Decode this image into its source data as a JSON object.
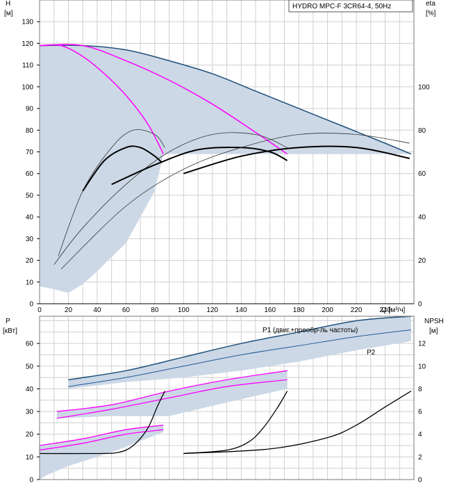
{
  "chart_data": [
    {
      "type": "line",
      "panel": "top",
      "legend_label": "HYDRO MPC-F 3CR64-4, 50Hz",
      "y_title": "H",
      "y_unit": "[м]",
      "y2_title": "eta",
      "y2_unit": "[%]",
      "x_unit_label": "Q [м³/ч]",
      "xlim": [
        0,
        260
      ],
      "ylim": [
        0,
        140
      ],
      "y2lim": [
        0,
        140
      ],
      "x_ticks": [
        "0",
        "20",
        "40",
        "60",
        "80",
        "100",
        "120",
        "140",
        "160",
        "180",
        "200",
        "220",
        "240"
      ],
      "y_ticks": [
        "0",
        "10",
        "20",
        "30",
        "40",
        "50",
        "60",
        "70",
        "80",
        "90",
        "100",
        "110",
        "120",
        "130"
      ],
      "y2_ticks": [
        "0",
        "20",
        "40",
        "60",
        "80",
        "100"
      ],
      "grid": true,
      "colors": {
        "envelope": "#ccd8e6",
        "max_curve": "#1f4e79",
        "setpoint": "#ff00ff",
        "eta": "#000000"
      },
      "envelope_upper": {
        "x": [
          0,
          30,
          60,
          90,
          120,
          150,
          180,
          210,
          240,
          258
        ],
        "y": [
          119,
          119,
          117,
          112,
          106,
          98,
          90,
          82,
          74,
          69
        ]
      },
      "envelope_lower": {
        "x": [
          0,
          8,
          20,
          30,
          40,
          60,
          80,
          86,
          258
        ],
        "y": [
          8,
          7,
          5,
          9,
          15,
          28,
          52,
          69,
          69
        ]
      },
      "series": [
        {
          "group": "max",
          "x": [
            0,
            30,
            60,
            90,
            120,
            150,
            180,
            210,
            240,
            258
          ],
          "y": [
            119,
            119,
            117,
            112,
            106,
            98,
            90,
            82,
            74,
            69
          ]
        },
        {
          "group": "setpoint",
          "x": [
            0,
            15,
            30,
            45,
            60,
            75,
            86
          ],
          "y": [
            119,
            119,
            114,
            106,
            96,
            83,
            69
          ]
        },
        {
          "group": "setpoint",
          "x": [
            0,
            30,
            60,
            90,
            120,
            150,
            172
          ],
          "y": [
            119,
            119,
            112,
            103,
            92,
            79,
            69
          ]
        },
        {
          "group": "eta_thin",
          "x": [
            13,
            30,
            50,
            65,
            80,
            87
          ],
          "y": [
            22,
            52,
            72,
            80,
            78,
            72
          ]
        },
        {
          "group": "eta_thick",
          "x": [
            30,
            45,
            60,
            70,
            80,
            85
          ],
          "y": [
            52,
            66,
            72,
            72,
            68,
            65
          ]
        },
        {
          "group": "eta_thin",
          "x": [
            10,
            30,
            60,
            90,
            120,
            150,
            172
          ],
          "y": [
            18,
            35,
            55,
            70,
            78,
            78,
            72
          ]
        },
        {
          "group": "eta_thick",
          "x": [
            50,
            80,
            110,
            140,
            160,
            172
          ],
          "y": [
            55,
            64,
            71,
            72,
            70,
            66
          ]
        },
        {
          "group": "eta_thin",
          "x": [
            15,
            60,
            100,
            140,
            180,
            220,
            257
          ],
          "y": [
            16,
            45,
            62,
            72,
            78,
            78,
            74
          ]
        },
        {
          "group": "eta_thick",
          "x": [
            100,
            140,
            180,
            220,
            257
          ],
          "y": [
            60,
            68,
            72,
            72,
            67
          ]
        }
      ]
    },
    {
      "type": "line",
      "panel": "bottom",
      "y_title": "P",
      "y_unit": "[кВт]",
      "y2_title": "NPSH",
      "y2_unit": "[м]",
      "xlim": [
        0,
        260
      ],
      "ylim": [
        0,
        72
      ],
      "y2lim": [
        0,
        14.4
      ],
      "y_ticks": [
        "0",
        "10",
        "20",
        "30",
        "40",
        "50",
        "60"
      ],
      "y2_ticks": [
        "0",
        "2",
        "4",
        "6",
        "8",
        "10",
        "12"
      ],
      "grid": true,
      "colors": {
        "envelope": "#ccd8e6",
        "p1_max": "#1f4e79",
        "p2_max": "#1f5a96",
        "setpoint": "#ff00ff",
        "npsh": "#000000"
      },
      "annotations": [
        {
          "text": "P1 (двиг.+преобр-ль частоты)",
          "x": 125,
          "y": 74
        },
        {
          "text": "P2",
          "x": 240,
          "y": 62
        }
      ],
      "envelopes": [
        {
          "upper": {
            "x": [
              20,
              60,
              100,
              140,
              180,
              220,
              258
            ],
            "y": [
              44,
              48,
              54,
              60,
              65,
              70,
              72
            ]
          },
          "lower": {
            "x": [
              20,
              60,
              100,
              140,
              180,
              220,
              258
            ],
            "y": [
              40,
              43,
              45,
              48,
              52,
              57,
              61
            ]
          }
        },
        {
          "upper": {
            "x": [
              12,
              50,
              90,
              130,
              172
            ],
            "y": [
              30,
              33,
              39,
              44,
              48
            ]
          },
          "lower": {
            "x": [
              12,
              50,
              90,
              130,
              172
            ],
            "y": [
              27,
              28,
              28,
              34,
              40
            ]
          }
        },
        {
          "upper": {
            "x": [
              0,
              30,
              60,
              86
            ],
            "y": [
              15,
              18,
              22,
              24
            ]
          },
          "lower": {
            "x": [
              0,
              5,
              20,
              50,
              86
            ],
            "y": [
              0,
              2,
              6,
              12,
              21
            ]
          }
        }
      ],
      "series": [
        {
          "group": "p1_max",
          "x": [
            20,
            60,
            100,
            140,
            180,
            220,
            258
          ],
          "y": [
            44,
            48,
            54,
            60,
            65,
            70,
            72
          ]
        },
        {
          "group": "p2_max",
          "x": [
            20,
            60,
            100,
            140,
            180,
            220,
            258
          ],
          "y": [
            41,
            45,
            50,
            55,
            59,
            63,
            66
          ]
        },
        {
          "group": "setpoint",
          "x": [
            12,
            50,
            90,
            130,
            172
          ],
          "y": [
            30,
            33,
            39,
            44,
            48
          ]
        },
        {
          "group": "setpoint",
          "x": [
            12,
            50,
            90,
            130,
            172
          ],
          "y": [
            27,
            31,
            36,
            41,
            44
          ]
        },
        {
          "group": "setpoint",
          "x": [
            0,
            30,
            60,
            86
          ],
          "y": [
            15,
            18,
            22,
            24
          ]
        },
        {
          "group": "setpoint",
          "x": [
            0,
            30,
            60,
            86
          ],
          "y": [
            13,
            16,
            20,
            22
          ]
        },
        {
          "group": "npsh",
          "x": [
            0,
            40,
            55,
            65,
            75,
            82,
            87
          ],
          "y": [
            2.3,
            2.3,
            2.4,
            3.0,
            4.5,
            6.5,
            7.8
          ]
        },
        {
          "group": "npsh",
          "x": [
            100,
            130,
            145,
            155,
            165,
            172
          ],
          "y": [
            2.3,
            2.6,
            3.3,
            4.5,
            6.3,
            7.8
          ]
        },
        {
          "group": "npsh",
          "x": [
            100,
            160,
            200,
            220,
            240,
            258
          ],
          "y": [
            2.3,
            2.7,
            3.7,
            4.8,
            6.4,
            7.8
          ]
        }
      ]
    }
  ]
}
